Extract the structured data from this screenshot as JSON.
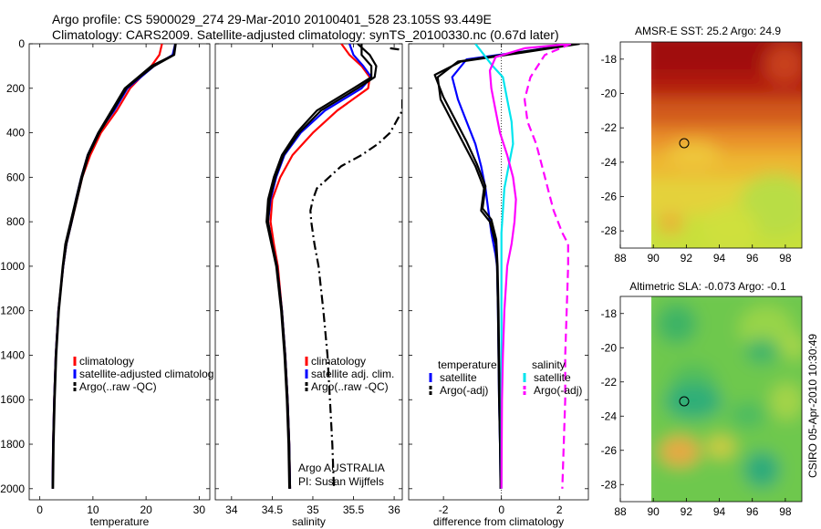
{
  "header": {
    "title_line1": "Argo profile: CS 5900029_274 29-Mar-2010 20100401_528 23.105S 93.449E",
    "title_line2": "Climatology: CARS2009. Satellite-adjusted climatology: synTS_20100330.nc (0.67d later)"
  },
  "side_label": "CSIRO 05-Apr-2010 10:30:49",
  "credit": {
    "line1": "Argo AUSTRALIA",
    "line2": "PI: Susan Wijffels"
  },
  "colors": {
    "red": "#ff0000",
    "blue": "#0000ff",
    "black": "#000000",
    "cyan": "#00e5ee",
    "magenta": "#ff00ff"
  },
  "chart_data": [
    {
      "id": "temperature",
      "type": "line",
      "xlabel": "temperature",
      "xlim": [
        -2,
        32
      ],
      "xticks": [
        0,
        10,
        20,
        30
      ],
      "ylim": [
        0,
        2050
      ],
      "yticks": [
        0,
        200,
        400,
        600,
        800,
        1000,
        1200,
        1400,
        1600,
        1800,
        2000
      ],
      "legend": [
        "climatology",
        "satellite-adjusted climatolog",
        "Argo(..raw -QC)"
      ],
      "series": [
        {
          "name": "climatology",
          "color": "red",
          "dash": "solid",
          "x": [
            23,
            22.5,
            21,
            19,
            17,
            14.5,
            11.5,
            9.5,
            8,
            7,
            6,
            5,
            4.4,
            3.5,
            3,
            2.7,
            2.5,
            2.4
          ],
          "y": [
            0,
            50,
            100,
            150,
            200,
            300,
            400,
            500,
            600,
            700,
            800,
            900,
            1000,
            1200,
            1400,
            1600,
            1800,
            2000
          ]
        },
        {
          "name": "satellite-adjusted climatology",
          "color": "blue",
          "dash": "solid",
          "x": [
            25.5,
            25,
            21.5,
            19,
            16.5,
            14,
            11,
            9,
            7.8,
            6.8,
            6,
            5,
            4.4,
            3.5,
            3,
            2.7,
            2.5,
            2.4
          ],
          "y": [
            0,
            50,
            100,
            150,
            200,
            300,
            400,
            500,
            600,
            700,
            800,
            900,
            1000,
            1200,
            1400,
            1600,
            1800,
            2000
          ]
        },
        {
          "name": "Argo(..raw -QC)",
          "color": "black",
          "dash": "solid",
          "x": [
            25.5,
            25.2,
            21,
            18.5,
            16,
            13.5,
            11,
            9,
            7.8,
            6.8,
            5.8,
            4.8,
            4.3,
            3.5,
            3,
            2.7,
            2.5,
            2.4
          ],
          "y": [
            0,
            50,
            100,
            150,
            200,
            300,
            400,
            500,
            600,
            700,
            800,
            900,
            1000,
            1200,
            1400,
            1600,
            1800,
            2000
          ]
        },
        {
          "name": "Argo(..raw -QC)",
          "color": "black",
          "dash": "solid",
          "x": [
            25.6,
            25.3,
            21.5,
            18.8,
            16.3,
            13.8,
            11.2,
            9.2,
            8,
            7,
            6,
            5,
            4.4,
            3.6,
            3.1,
            2.8,
            2.6,
            2.5
          ],
          "y": [
            0,
            50,
            100,
            150,
            200,
            300,
            400,
            500,
            600,
            700,
            800,
            900,
            1000,
            1200,
            1400,
            1600,
            1800,
            2000
          ]
        }
      ]
    },
    {
      "id": "salinity",
      "type": "line",
      "xlabel": "salinity",
      "xlim": [
        33.8,
        36.1
      ],
      "xticks": [
        34,
        34.5,
        35,
        35.5,
        36
      ],
      "ylim": [
        0,
        2050
      ],
      "yticks": [
        0,
        200,
        400,
        600,
        800,
        1000,
        1200,
        1400,
        1600,
        1800,
        2000
      ],
      "legend": [
        "climatology",
        "satellite adj. clim.",
        "Argo(..raw -QC)"
      ],
      "series": [
        {
          "name": "climatology",
          "color": "red",
          "dash": "solid",
          "x": [
            35.35,
            35.45,
            35.6,
            35.7,
            35.68,
            35.3,
            35,
            34.75,
            34.6,
            34.5,
            34.48,
            34.52,
            34.57,
            34.62,
            34.66,
            34.69,
            34.71,
            34.72
          ],
          "y": [
            0,
            50,
            100,
            150,
            200,
            300,
            400,
            500,
            600,
            700,
            800,
            900,
            1000,
            1200,
            1400,
            1600,
            1800,
            2000
          ]
        },
        {
          "name": "satellite adj. clim.",
          "color": "blue",
          "dash": "solid",
          "x": [
            35.45,
            35.5,
            35.62,
            35.72,
            35.6,
            35.15,
            34.85,
            34.65,
            34.55,
            34.48,
            34.45,
            34.5,
            34.56,
            34.62,
            34.66,
            34.69,
            34.71,
            34.72
          ],
          "y": [
            0,
            50,
            100,
            150,
            200,
            300,
            400,
            500,
            600,
            700,
            800,
            900,
            1000,
            1200,
            1400,
            1600,
            1800,
            2000
          ]
        },
        {
          "name": "Argo(..raw -QC)",
          "color": "black",
          "dash": "solid",
          "x": [
            35.6,
            35.6,
            35.72,
            35.72,
            35.5,
            35.05,
            34.8,
            34.62,
            34.52,
            34.45,
            34.43,
            34.49,
            34.55,
            34.61,
            34.65,
            34.68,
            34.7,
            34.71
          ],
          "y": [
            0,
            50,
            100,
            150,
            200,
            300,
            400,
            500,
            600,
            700,
            800,
            900,
            1000,
            1200,
            1400,
            1600,
            1800,
            2000
          ]
        },
        {
          "name": "Argo(..raw -QC)",
          "color": "black",
          "dash": "solid",
          "x": [
            35.55,
            35.7,
            35.78,
            35.76,
            35.55,
            35.1,
            34.83,
            34.64,
            34.54,
            34.47,
            34.45,
            34.5,
            34.56,
            34.62,
            34.66,
            34.69,
            34.71,
            34.72
          ],
          "y": [
            0,
            50,
            100,
            150,
            200,
            300,
            400,
            500,
            600,
            700,
            800,
            900,
            1000,
            1200,
            1400,
            1600,
            1800,
            2000
          ]
        },
        {
          "name": "Argo(..raw -QC)",
          "color": "black",
          "dash": "dashdot",
          "x": [
            36.1,
            36.1,
            35.95,
            35.8,
            35.6,
            35.35,
            35.2,
            35.05,
            35.0,
            34.97,
            34.98,
            35.02,
            35.07,
            35.13,
            35.18,
            35.21,
            35.24,
            35.26
          ],
          "y": [
            250,
            300,
            400,
            450,
            500,
            550,
            600,
            650,
            700,
            750,
            800,
            900,
            1000,
            1200,
            1400,
            1600,
            1800,
            2000
          ]
        },
        {
          "name": "Argo(..raw -QC)",
          "color": "black",
          "dash": "dashdot",
          "x": [
            35.95,
            36.05,
            36.1
          ],
          "y": [
            20,
            25,
            30
          ]
        }
      ]
    },
    {
      "id": "difference",
      "type": "line",
      "xlabel": "difference from climatology",
      "xlim": [
        -3.2,
        3.0
      ],
      "xticks": [
        -2,
        0,
        2
      ],
      "ylim": [
        0,
        2050
      ],
      "yticks": [
        0,
        200,
        400,
        600,
        800,
        1000,
        1200,
        1400,
        1600,
        1800,
        2000
      ],
      "legend": [
        "temperature",
        "satellite",
        "Argo(-adj)",
        "salinity",
        "satellite",
        "Argo(-adj)"
      ],
      "series": [
        {
          "name": "temperature satellite",
          "color": "blue",
          "dash": "solid",
          "x": [
            2.5,
            1.0,
            -1.2,
            -1.7,
            -1.5,
            -1.2,
            -0.9,
            -0.7,
            -0.55,
            -0.45,
            -0.35,
            -0.2,
            -0.15,
            -0.12,
            -0.1,
            -0.08,
            -0.05,
            -0.03
          ],
          "y": [
            0,
            30,
            70,
            150,
            250,
            350,
            450,
            550,
            650,
            750,
            850,
            950,
            1000,
            1200,
            1400,
            1600,
            1800,
            2000
          ]
        },
        {
          "name": "temperature Argo(-adj)",
          "color": "black",
          "dash": "solid",
          "x": [
            2.6,
            0.5,
            -1.5,
            -2.2,
            -2.1,
            -1.7,
            -1.3,
            -0.9,
            -0.6,
            -0.7,
            -0.4,
            -0.2,
            -0.15,
            -0.12,
            -0.1,
            -0.08,
            -0.05,
            -0.03
          ],
          "y": [
            0,
            40,
            80,
            150,
            250,
            350,
            450,
            550,
            650,
            750,
            800,
            900,
            1000,
            1200,
            1400,
            1600,
            1800,
            2000
          ]
        },
        {
          "name": "temperature Argo(-adj)",
          "color": "black",
          "dash": "solid",
          "x": [
            2.7,
            0.7,
            -1.4,
            -2.3,
            -2.0,
            -1.6,
            -1.2,
            -0.85,
            -0.55,
            -0.65,
            -0.35,
            -0.18,
            -0.13,
            -0.1,
            -0.08,
            -0.06,
            -0.04,
            -0.02
          ],
          "y": [
            0,
            40,
            80,
            140,
            240,
            340,
            440,
            540,
            640,
            740,
            790,
            880,
            1000,
            1200,
            1400,
            1600,
            1800,
            2000
          ]
        },
        {
          "name": "salinity satellite",
          "color": "cyan",
          "dash": "solid",
          "x": [
            -0.9,
            -0.6,
            -0.3,
            0.05,
            0.2,
            0.35,
            0.4,
            0.25,
            0.1,
            0.05,
            0.0,
            0.0,
            0.0,
            0.0,
            0.0,
            0.0
          ],
          "y": [
            0,
            50,
            100,
            150,
            250,
            350,
            450,
            550,
            650,
            750,
            850,
            1000,
            1200,
            1400,
            1600,
            2000
          ]
        },
        {
          "name": "salinity Argo(-adj)",
          "color": "magenta",
          "dash": "solid",
          "x": [
            2.4,
            0.8,
            -0.2,
            -0.4,
            -0.35,
            -0.2,
            -0.05,
            0.2,
            0.4,
            0.5,
            0.45,
            0.35,
            0.2,
            0.1,
            0.05,
            0.02,
            0.0
          ],
          "y": [
            0,
            20,
            60,
            120,
            200,
            300,
            400,
            500,
            600,
            700,
            800,
            900,
            1000,
            1200,
            1400,
            1600,
            2000
          ]
        },
        {
          "name": "salinity Argo(-adj) raw",
          "color": "magenta",
          "dash": "dashed",
          "x": [
            2.4,
            1.5,
            1.0,
            0.8,
            0.9,
            1.2,
            1.4,
            1.6,
            1.8,
            2.1,
            2.3,
            2.3,
            2.25,
            2.2,
            2.2,
            2.1
          ],
          "y": [
            0,
            50,
            150,
            250,
            350,
            450,
            550,
            650,
            750,
            850,
            900,
            1000,
            1200,
            1400,
            1600,
            2000
          ]
        }
      ]
    },
    {
      "id": "sst_map",
      "type": "heatmap",
      "title": "AMSR-E SST: 25.2 Argo: 24.9",
      "xlim": [
        88,
        99
      ],
      "xticks": [
        88,
        90,
        92,
        94,
        96,
        98
      ],
      "ylim": [
        -29,
        -17
      ],
      "yticks": [
        -18,
        -20,
        -22,
        -24,
        -26,
        -28
      ],
      "data_lon": [
        90,
        99
      ],
      "marker": {
        "lon": 93.45,
        "lat": -23.1
      }
    },
    {
      "id": "sla_map",
      "type": "heatmap",
      "title": "Altimetric SLA: -0.073 Argo: -0.1",
      "xlim": [
        88,
        99
      ],
      "xticks": [
        88,
        90,
        92,
        94,
        96,
        98
      ],
      "ylim": [
        -29,
        -17
      ],
      "yticks": [
        -18,
        -20,
        -22,
        -24,
        -26,
        -28
      ],
      "data_lon": [
        90,
        99
      ],
      "marker": {
        "lon": 93.45,
        "lat": -23.1
      }
    }
  ]
}
